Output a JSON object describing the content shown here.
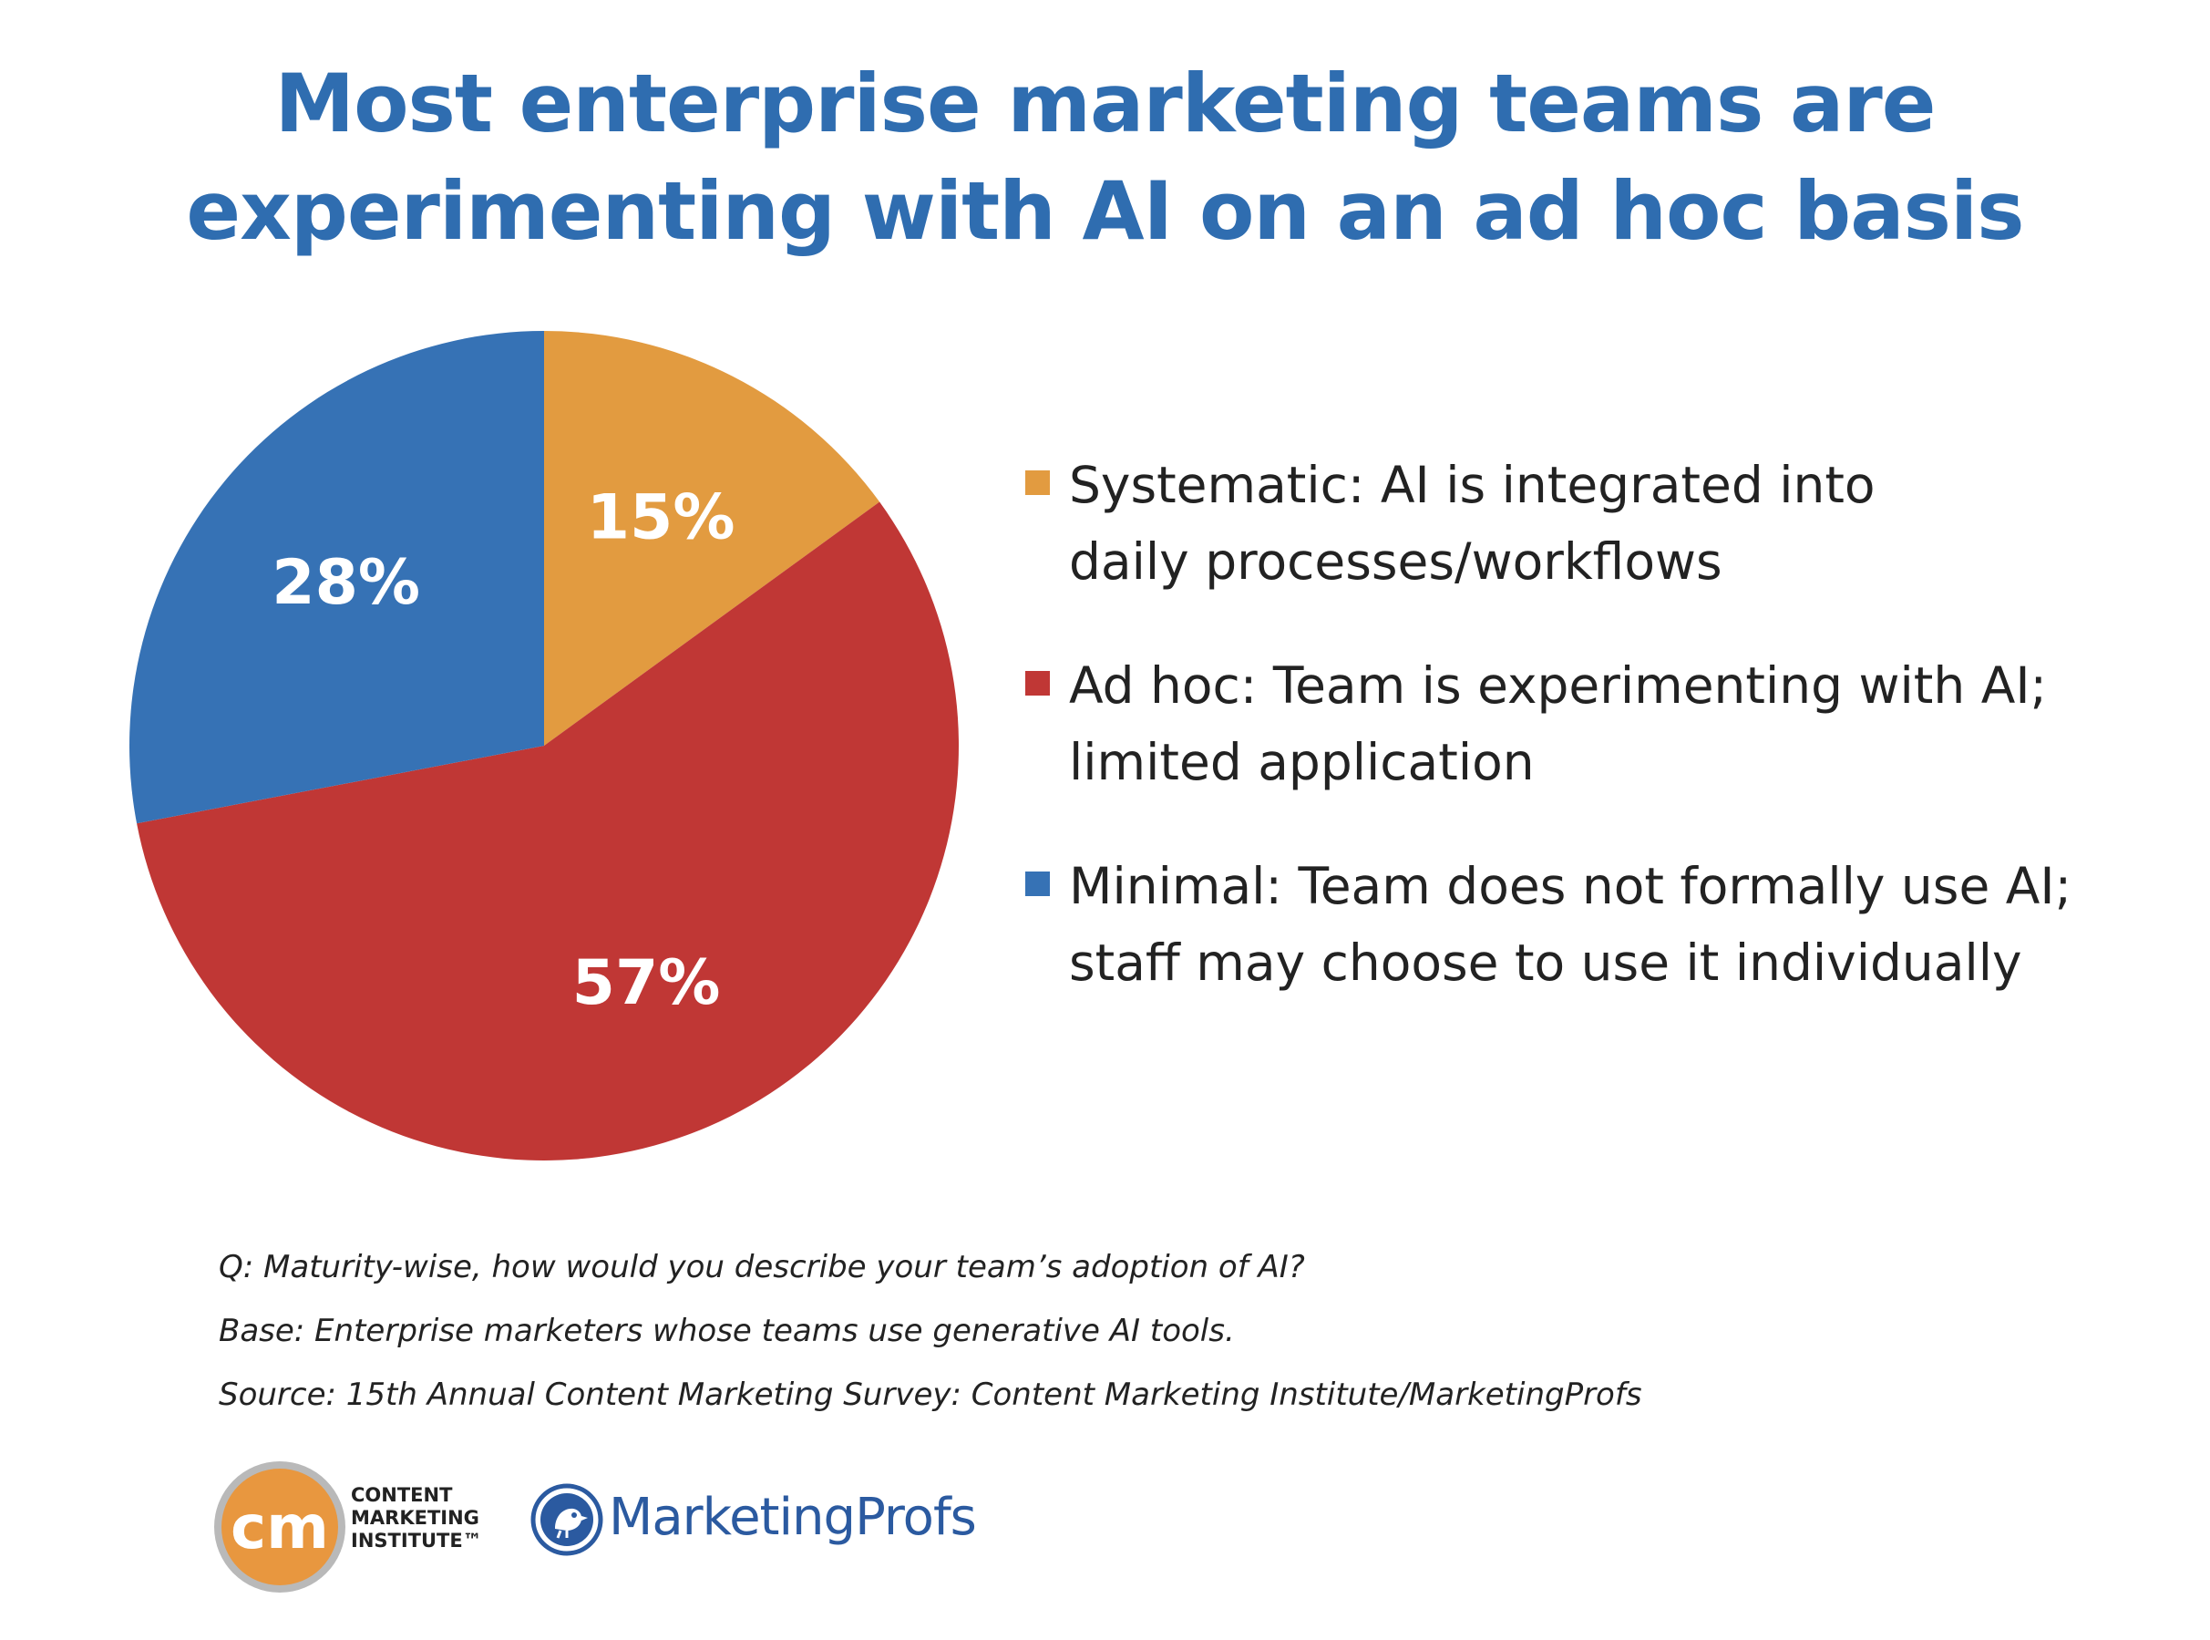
{
  "title": {
    "line1": "Most enterprise marketing teams are",
    "line2": "experimenting with AI on an ad hoc basis"
  },
  "chart_data": {
    "type": "pie",
    "title": "Most enterprise marketing teams are experimenting with AI on an ad hoc basis",
    "slices": [
      {
        "label": "Systematic: AI is integrated into daily processes/workflows",
        "value": 15,
        "display": "15%",
        "color": "#e29b40"
      },
      {
        "label": "Ad hoc: Team is experimenting with AI; limited application",
        "value": 57,
        "display": "57%",
        "color": "#c03735"
      },
      {
        "label": "Minimal: Team does not formally use AI; staff may choose to use it individually",
        "value": 28,
        "display": "28%",
        "color": "#3672b5"
      }
    ],
    "legend_position": "right"
  },
  "legend": [
    {
      "text": "Systematic: AI is integrated into\ndaily processes/workflows",
      "color": "#e29b40"
    },
    {
      "text": "Ad hoc: Team is experimenting with AI;\nlimited application",
      "color": "#c03735"
    },
    {
      "text": "Minimal: Team does not formally use AI;\nstaff may choose to use it individually",
      "color": "#3672b5"
    }
  ],
  "notes": {
    "question": "Q: Maturity-wise, how would you describe your team’s adoption of AI?",
    "base": "Base: Enterprise marketers whose teams use generative AI tools.",
    "source": "Source: 15th Annual Content Marketing Survey: Content Marketing Institute/MarketingProfs"
  },
  "logos": {
    "cmi_mark": "cm",
    "cmi_line1": "CONTENT",
    "cmi_line2": "MARKETING",
    "cmi_line3": "INSTITUTE™",
    "mp_name": "MarketingProfs"
  },
  "colors": {
    "title": "#2f6db0",
    "cmi_orange": "#e8973f",
    "mp_blue": "#2b5aa0"
  }
}
